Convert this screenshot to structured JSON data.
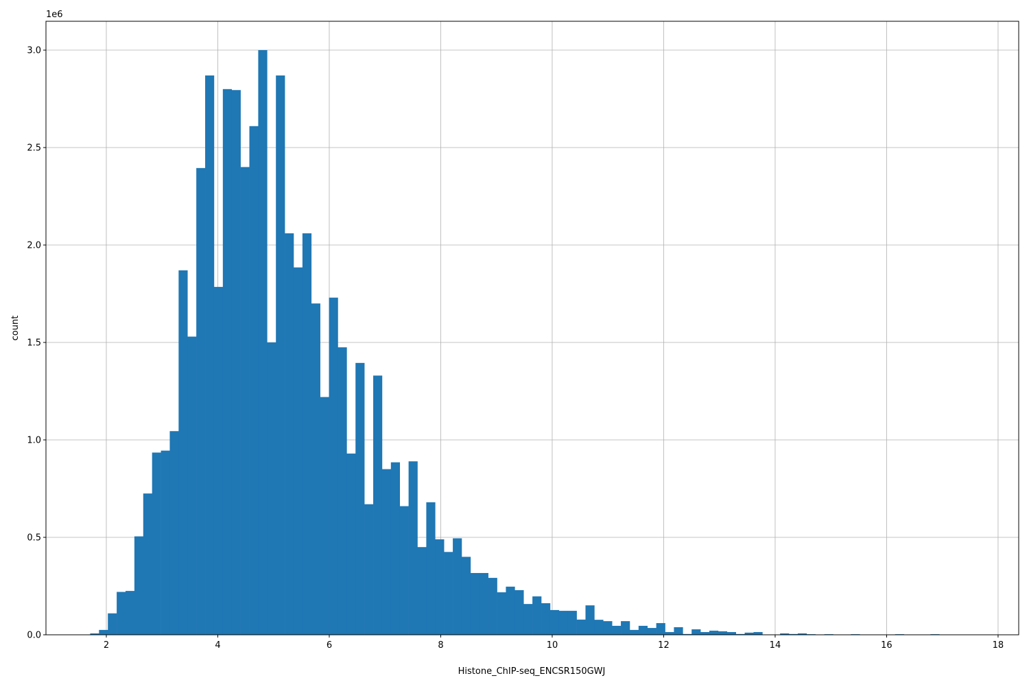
{
  "chart_data": {
    "type": "bar",
    "subtype": "histogram",
    "xlabel": "Histone_ChIP-seq_ENCSR150GWJ",
    "ylabel": "count",
    "y_offset_label": "1e6",
    "y_scale": 1000000,
    "bin_start": 1.71,
    "bin_width": 0.1587,
    "xlim": [
      0.917,
      18.37
    ],
    "ylim": [
      0,
      3.148
    ],
    "xticks": [
      2,
      4,
      6,
      8,
      10,
      12,
      14,
      16,
      18
    ],
    "xtick_labels": [
      "2",
      "4",
      "6",
      "8",
      "10",
      "12",
      "14",
      "16",
      "18"
    ],
    "yticks": [
      0,
      0.5,
      1,
      1.5,
      2,
      2.5,
      3
    ],
    "ytick_labels": [
      "0.0",
      "0.5",
      "1.0",
      "1.5",
      "2.0",
      "2.5",
      "3.0"
    ],
    "grid": true,
    "color": "#1f77b4",
    "values": [
      0.007,
      0.025,
      0.11,
      0.22,
      0.225,
      0.505,
      0.725,
      0.935,
      0.945,
      1.045,
      1.87,
      1.53,
      2.395,
      2.87,
      1.785,
      2.8,
      2.795,
      2.4,
      2.61,
      3.0,
      1.5,
      2.87,
      2.06,
      1.885,
      2.06,
      1.7,
      1.22,
      1.73,
      1.475,
      0.93,
      1.395,
      0.67,
      1.33,
      0.85,
      0.885,
      0.66,
      0.89,
      0.45,
      0.68,
      0.49,
      0.425,
      0.495,
      0.4,
      0.317,
      0.317,
      0.292,
      0.218,
      0.247,
      0.229,
      0.158,
      0.197,
      0.162,
      0.127,
      0.123,
      0.123,
      0.078,
      0.151,
      0.077,
      0.07,
      0.046,
      0.07,
      0.025,
      0.046,
      0.035,
      0.06,
      0.014,
      0.039,
      0.004,
      0.028,
      0.014,
      0.021,
      0.018,
      0.014,
      0.004,
      0.011,
      0.014,
      0,
      0,
      0.007,
      0.004,
      0.007,
      0.003,
      0,
      0.003,
      0,
      0,
      0.003,
      0,
      0,
      0,
      0,
      0.003,
      0,
      0,
      0,
      0.003,
      0,
      0,
      0,
      0
    ]
  }
}
